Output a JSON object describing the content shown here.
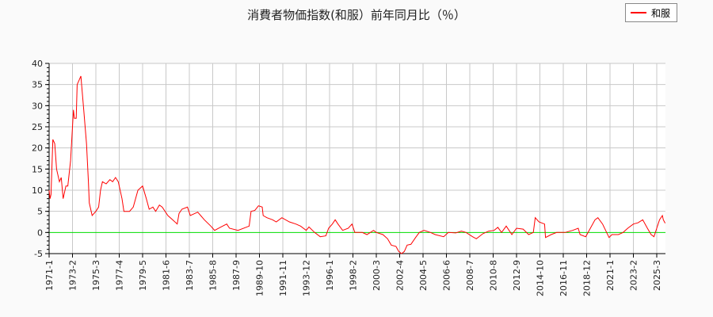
{
  "chart_data": {
    "type": "line",
    "title": "消費者物価指数(和服）前年同月比（％）",
    "xlabel": "",
    "ylabel": "",
    "ylim": [
      -5,
      40
    ],
    "xlim": [
      "1971-1",
      "2025-12"
    ],
    "yticks": [
      -5,
      0,
      5,
      10,
      15,
      20,
      25,
      30,
      35,
      40
    ],
    "xticks": [
      "1971-1",
      "1973-2",
      "1975-3",
      "1977-4",
      "1979-5",
      "1981-6",
      "1983-7",
      "1985-8",
      "1987-9",
      "1989-10",
      "1991-11",
      "1993-12",
      "1996-1",
      "1998-2",
      "2000-3",
      "2002-4",
      "2004-5",
      "2006-6",
      "2008-7",
      "2010-8",
      "2012-9",
      "2014-10",
      "2016-11",
      "2018-12",
      "2021-1",
      "2023-2",
      "2025-3"
    ],
    "grid": true,
    "legend_position": "top-right",
    "colors": {
      "series": "#ff0000",
      "zero_line": "#00dd00",
      "grid": "#c8c8c8"
    },
    "series": [
      {
        "name": "和服",
        "points": [
          [
            "1971-1",
            10
          ],
          [
            "1971-2",
            8
          ],
          [
            "1971-3",
            9
          ],
          [
            "1971-5",
            22
          ],
          [
            "1971-7",
            21
          ],
          [
            "1971-9",
            15
          ],
          [
            "1971-12",
            12
          ],
          [
            "1972-2",
            13
          ],
          [
            "1972-4",
            8
          ],
          [
            "1972-7",
            11
          ],
          [
            "1972-9",
            11
          ],
          [
            "1972-12",
            17
          ],
          [
            "1973-2",
            25
          ],
          [
            "1973-3",
            29
          ],
          [
            "1973-4",
            27
          ],
          [
            "1973-6",
            27
          ],
          [
            "1973-7",
            35
          ],
          [
            "1973-9",
            36
          ],
          [
            "1973-11",
            37
          ],
          [
            "1974-2",
            29
          ],
          [
            "1974-5",
            21
          ],
          [
            "1974-7",
            12
          ],
          [
            "1974-8",
            7
          ],
          [
            "1974-11",
            4
          ],
          [
            "1975-3",
            5
          ],
          [
            "1975-6",
            6
          ],
          [
            "1975-8",
            10
          ],
          [
            "1975-10",
            12
          ],
          [
            "1976-2",
            11.5
          ],
          [
            "1976-6",
            12.5
          ],
          [
            "1976-9",
            12
          ],
          [
            "1976-12",
            13
          ],
          [
            "1977-3",
            12
          ],
          [
            "1977-7",
            8
          ],
          [
            "1977-9",
            5
          ],
          [
            "1978-3",
            5
          ],
          [
            "1978-7",
            6
          ],
          [
            "1978-12",
            10
          ],
          [
            "1979-5",
            11
          ],
          [
            "1979-9",
            8
          ],
          [
            "1979-12",
            5.5
          ],
          [
            "1980-4",
            6
          ],
          [
            "1980-7",
            5
          ],
          [
            "1980-11",
            6.5
          ],
          [
            "1981-2",
            6
          ],
          [
            "1981-8",
            4
          ],
          [
            "1982-1",
            3
          ],
          [
            "1982-6",
            2
          ],
          [
            "1982-8",
            4.5
          ],
          [
            "1982-11",
            5.5
          ],
          [
            "1983-5",
            6
          ],
          [
            "1983-8",
            4
          ],
          [
            "1984-4",
            4.8
          ],
          [
            "1984-11",
            3
          ],
          [
            "1985-6",
            1.5
          ],
          [
            "1985-10",
            0.5
          ],
          [
            "1986-4",
            1.2
          ],
          [
            "1986-11",
            2
          ],
          [
            "1987-2",
            1
          ],
          [
            "1987-11",
            0.5
          ],
          [
            "1988-11",
            1.5
          ],
          [
            "1989-1",
            5
          ],
          [
            "1989-5",
            5.2
          ],
          [
            "1989-9",
            6.3
          ],
          [
            "1990-1",
            6
          ],
          [
            "1990-2",
            4
          ],
          [
            "1990-6",
            3.5
          ],
          [
            "1990-12",
            3
          ],
          [
            "1991-4",
            2.5
          ],
          [
            "1991-10",
            3.5
          ],
          [
            "1992-6",
            2.5
          ],
          [
            "1993-1",
            2
          ],
          [
            "1993-6",
            1.5
          ],
          [
            "1993-12",
            0.5
          ],
          [
            "1994-3",
            1.3
          ],
          [
            "1994-9",
            0
          ],
          [
            "1995-3",
            -1
          ],
          [
            "1995-9",
            -0.8
          ],
          [
            "1995-12",
            1
          ],
          [
            "1996-4",
            2
          ],
          [
            "1996-7",
            3
          ],
          [
            "1996-10",
            2
          ],
          [
            "1997-3",
            0.5
          ],
          [
            "1997-9",
            1
          ],
          [
            "1998-1",
            2
          ],
          [
            "1998-4",
            0
          ],
          [
            "1998-12",
            0
          ],
          [
            "1999-5",
            -0.5
          ],
          [
            "1999-12",
            0.5
          ],
          [
            "2000-3",
            0
          ],
          [
            "2000-10",
            -0.5
          ],
          [
            "2001-3",
            -1.5
          ],
          [
            "2001-7",
            -3
          ],
          [
            "2001-12",
            -3.3
          ],
          [
            "2002-3",
            -4.5
          ],
          [
            "2002-6",
            -5
          ],
          [
            "2002-9",
            -4.5
          ],
          [
            "2002-12",
            -3
          ],
          [
            "2003-4",
            -2.8
          ],
          [
            "2003-9",
            -1.2
          ],
          [
            "2004-1",
            0
          ],
          [
            "2004-6",
            0.5
          ],
          [
            "2005-1",
            0
          ],
          [
            "2005-6",
            -0.5
          ],
          [
            "2006-3",
            -1
          ],
          [
            "2006-8",
            0
          ],
          [
            "2007-4",
            -0.1
          ],
          [
            "2007-10",
            0.3
          ],
          [
            "2008-3",
            0
          ],
          [
            "2008-10",
            -1
          ],
          [
            "2009-2",
            -1.5
          ],
          [
            "2009-9",
            -0.3
          ],
          [
            "2010-3",
            0.3
          ],
          [
            "2010-9",
            0.5
          ],
          [
            "2011-1",
            1.2
          ],
          [
            "2011-5",
            0
          ],
          [
            "2011-10",
            1.5
          ],
          [
            "2012-4",
            -0.5
          ],
          [
            "2012-9",
            1
          ],
          [
            "2013-4",
            0.8
          ],
          [
            "2013-10",
            -0.5
          ],
          [
            "2014-3",
            0
          ],
          [
            "2014-5",
            3.5
          ],
          [
            "2014-9",
            2.5
          ],
          [
            "2015-3",
            2
          ],
          [
            "2015-4",
            -1.2
          ],
          [
            "2015-10",
            -0.5
          ],
          [
            "2016-4",
            0
          ],
          [
            "2017-1",
            0
          ],
          [
            "2017-9",
            0.5
          ],
          [
            "2018-3",
            1
          ],
          [
            "2018-5",
            -0.5
          ],
          [
            "2018-11",
            -1
          ],
          [
            "2019-4",
            1
          ],
          [
            "2019-9",
            3
          ],
          [
            "2019-12",
            3.5
          ],
          [
            "2020-5",
            2
          ],
          [
            "2020-12",
            -1.2
          ],
          [
            "2021-3",
            -0.5
          ],
          [
            "2021-10",
            -0.5
          ],
          [
            "2022-3",
            0
          ],
          [
            "2022-8",
            1
          ],
          [
            "2023-2",
            2
          ],
          [
            "2023-7",
            2.3
          ],
          [
            "2023-12",
            3
          ],
          [
            "2024-5",
            1
          ],
          [
            "2024-9",
            -0.5
          ],
          [
            "2024-12",
            -1
          ],
          [
            "2025-3",
            1
          ],
          [
            "2025-6",
            3
          ],
          [
            "2025-9",
            4
          ],
          [
            "2025-10",
            3
          ],
          [
            "2025-12",
            2.2
          ]
        ]
      }
    ]
  }
}
